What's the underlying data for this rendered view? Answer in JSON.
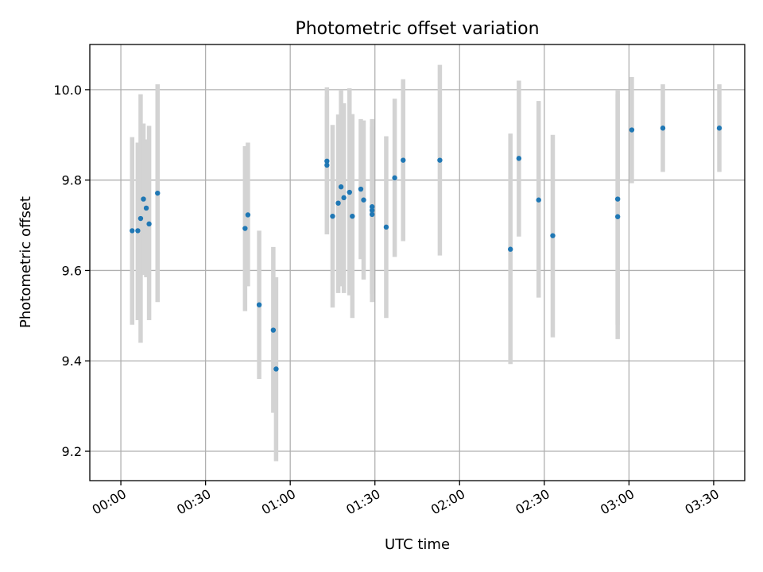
{
  "chart_data": {
    "type": "scatter",
    "title": "Photometric offset variation",
    "xlabel": "UTC time",
    "ylabel": "Photometric offset",
    "xlim": [
      "23:49",
      "03:41"
    ],
    "ylim": [
      9.135,
      10.1
    ],
    "x_ticks": [
      "00:00",
      "00:30",
      "01:00",
      "01:30",
      "02:00",
      "02:30",
      "03:00",
      "03:30"
    ],
    "y_ticks": [
      "9.2",
      "9.4",
      "9.6",
      "9.8",
      "10.0"
    ],
    "grid": true,
    "marker_color": "#1f77b4",
    "errorbar_color": "#d3d3d3",
    "points": [
      {
        "x": "00:04",
        "y": 9.688,
        "ylo": 9.48,
        "yhi": 9.895
      },
      {
        "x": "00:06",
        "y": 9.688,
        "ylo": 9.49,
        "yhi": 9.883
      },
      {
        "x": "00:07",
        "y": 9.715,
        "ylo": 9.44,
        "yhi": 9.99
      },
      {
        "x": "00:08",
        "y": 9.758,
        "ylo": 9.59,
        "yhi": 9.925
      },
      {
        "x": "00:09",
        "y": 9.738,
        "ylo": 9.585,
        "yhi": 9.89
      },
      {
        "x": "00:10",
        "y": 9.703,
        "ylo": 9.49,
        "yhi": 9.92
      },
      {
        "x": "00:13",
        "y": 9.771,
        "ylo": 9.53,
        "yhi": 10.012
      },
      {
        "x": "00:44",
        "y": 9.693,
        "ylo": 9.51,
        "yhi": 9.875
      },
      {
        "x": "00:45",
        "y": 9.723,
        "ylo": 9.565,
        "yhi": 9.883
      },
      {
        "x": "00:49",
        "y": 9.524,
        "ylo": 9.36,
        "yhi": 9.688
      },
      {
        "x": "00:54",
        "y": 9.468,
        "ylo": 9.285,
        "yhi": 9.652
      },
      {
        "x": "00:55",
        "y": 9.382,
        "ylo": 9.178,
        "yhi": 9.585
      },
      {
        "x": "01:13",
        "y": 9.842,
        "ylo": 9.68,
        "yhi": 10.005
      },
      {
        "x": "01:13",
        "y": 9.833,
        "ylo": 9.68,
        "yhi": 9.985
      },
      {
        "x": "01:15",
        "y": 9.72,
        "ylo": 9.518,
        "yhi": 9.922
      },
      {
        "x": "01:17",
        "y": 9.749,
        "ylo": 9.55,
        "yhi": 9.945
      },
      {
        "x": "01:18",
        "y": 9.785,
        "ylo": 9.565,
        "yhi": 10.0
      },
      {
        "x": "01:19",
        "y": 9.761,
        "ylo": 9.55,
        "yhi": 9.97
      },
      {
        "x": "01:21",
        "y": 9.773,
        "ylo": 9.545,
        "yhi": 10.003
      },
      {
        "x": "01:22",
        "y": 9.72,
        "ylo": 9.495,
        "yhi": 9.946
      },
      {
        "x": "01:25",
        "y": 9.78,
        "ylo": 9.625,
        "yhi": 9.935
      },
      {
        "x": "01:26",
        "y": 9.756,
        "ylo": 9.58,
        "yhi": 9.932
      },
      {
        "x": "01:29",
        "y": 9.733,
        "ylo": 9.55,
        "yhi": 9.917
      },
      {
        "x": "01:29",
        "y": 9.741,
        "ylo": 9.548,
        "yhi": 9.935
      },
      {
        "x": "01:29",
        "y": 9.724,
        "ylo": 9.53,
        "yhi": 9.918
      },
      {
        "x": "01:34",
        "y": 9.696,
        "ylo": 9.495,
        "yhi": 9.897
      },
      {
        "x": "01:37",
        "y": 9.805,
        "ylo": 9.63,
        "yhi": 9.98
      },
      {
        "x": "01:40",
        "y": 9.844,
        "ylo": 9.665,
        "yhi": 10.023
      },
      {
        "x": "01:53",
        "y": 9.844,
        "ylo": 9.633,
        "yhi": 10.055
      },
      {
        "x": "02:18",
        "y": 9.647,
        "ylo": 9.393,
        "yhi": 9.903
      },
      {
        "x": "02:21",
        "y": 9.848,
        "ylo": 9.675,
        "yhi": 10.02
      },
      {
        "x": "02:28",
        "y": 9.756,
        "ylo": 9.54,
        "yhi": 9.975
      },
      {
        "x": "02:33",
        "y": 9.677,
        "ylo": 9.452,
        "yhi": 9.9
      },
      {
        "x": "02:56",
        "y": 9.758,
        "ylo": 9.48,
        "yhi": 10.0
      },
      {
        "x": "02:56",
        "y": 9.719,
        "ylo": 9.448,
        "yhi": 9.99
      },
      {
        "x": "03:01",
        "y": 9.911,
        "ylo": 9.793,
        "yhi": 10.028
      },
      {
        "x": "03:12",
        "y": 9.915,
        "ylo": 9.818,
        "yhi": 10.012
      },
      {
        "x": "03:32",
        "y": 9.915,
        "ylo": 9.818,
        "yhi": 10.012
      }
    ]
  }
}
